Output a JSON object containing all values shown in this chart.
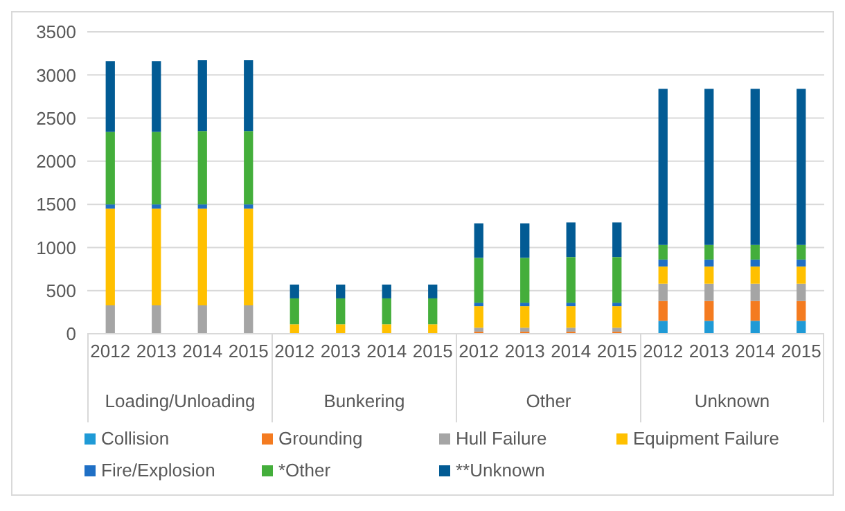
{
  "chart_data": {
    "type": "bar",
    "stacked": true,
    "categories": [
      "2012",
      "2013",
      "2014",
      "2015",
      "2012",
      "2013",
      "2014",
      "2015",
      "2012",
      "2013",
      "2014",
      "2015",
      "2012",
      "2013",
      "2014",
      "2015"
    ],
    "annotations": [
      "Loading/Unloading",
      "Bunkering",
      "Other",
      "Unknown"
    ],
    "series": [
      {
        "name": "Collision",
        "color": "#1f9ad6",
        "values": [
          0,
          0,
          0,
          0,
          0,
          0,
          0,
          0,
          0,
          0,
          0,
          0,
          150,
          150,
          150,
          150
        ]
      },
      {
        "name": "Grounding",
        "color": "#f47b20",
        "values": [
          0,
          0,
          0,
          0,
          0,
          0,
          0,
          0,
          25,
          25,
          25,
          25,
          230,
          230,
          230,
          230
        ]
      },
      {
        "name": "Hull Failure",
        "color": "#a5a5a5",
        "values": [
          330,
          330,
          330,
          330,
          0,
          0,
          0,
          0,
          45,
          45,
          45,
          45,
          200,
          200,
          200,
          200
        ]
      },
      {
        "name": "Equipment Failure",
        "color": "#ffc000",
        "values": [
          1120,
          1120,
          1120,
          1120,
          110,
          110,
          110,
          110,
          250,
          250,
          250,
          250,
          200,
          200,
          200,
          200
        ]
      },
      {
        "name": "Fire/Explosion",
        "color": "#1f6fc5",
        "values": [
          50,
          50,
          50,
          50,
          0,
          0,
          0,
          0,
          40,
          40,
          40,
          40,
          80,
          80,
          80,
          80
        ]
      },
      {
        "name": "*Other",
        "color": "#44ae3b",
        "values": [
          840,
          840,
          850,
          850,
          300,
          300,
          300,
          300,
          520,
          520,
          530,
          530,
          170,
          170,
          170,
          170
        ]
      },
      {
        "name": "**Unknown",
        "color": "#025b94",
        "values": [
          820,
          820,
          820,
          820,
          160,
          160,
          160,
          160,
          400,
          400,
          400,
          400,
          1810,
          1810,
          1810,
          1810
        ]
      }
    ],
    "ylim": [
      0,
      3500
    ],
    "yticks": [
      0,
      500,
      1000,
      1500,
      2000,
      2500,
      3000,
      3500
    ],
    "grid": "y",
    "legend": "bottom"
  }
}
